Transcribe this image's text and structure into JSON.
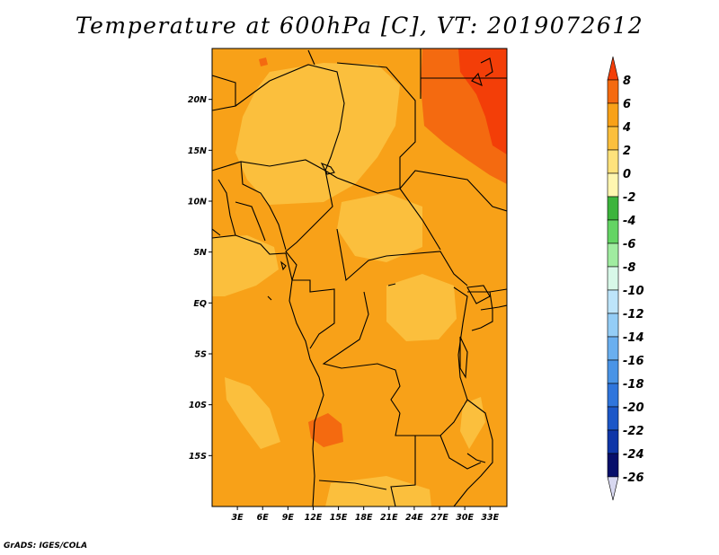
{
  "title": "Temperature at 600hPa [C], VT: 2019072612",
  "credit": "GrADS: IGES/COLA",
  "map": {
    "lon_range": [
      0,
      35
    ],
    "lat_range": [
      -20,
      25
    ],
    "lat_ticks": [
      {
        "value": 20,
        "label": "20N"
      },
      {
        "value": 15,
        "label": "15N"
      },
      {
        "value": 10,
        "label": "10N"
      },
      {
        "value": 5,
        "label": "5N"
      },
      {
        "value": 0,
        "label": "EQ"
      },
      {
        "value": -5,
        "label": "5S"
      },
      {
        "value": -10,
        "label": "10S"
      },
      {
        "value": -15,
        "label": "15S"
      }
    ],
    "lon_ticks": [
      {
        "value": 3,
        "label": "3E"
      },
      {
        "value": 6,
        "label": "6E"
      },
      {
        "value": 9,
        "label": "9E"
      },
      {
        "value": 12,
        "label": "12E"
      },
      {
        "value": 15,
        "label": "15E"
      },
      {
        "value": 18,
        "label": "18E"
      },
      {
        "value": 21,
        "label": "21E"
      },
      {
        "value": 24,
        "label": "24E"
      },
      {
        "value": 27,
        "label": "27E"
      },
      {
        "value": 30,
        "label": "30E"
      },
      {
        "value": 33,
        "label": "33E"
      }
    ],
    "colors": {
      "base_2_to_4": "#f8a118",
      "band_0_to_2": "#fbbf3d",
      "band_4_to_6": "#f46a10",
      "band_6_to_8": "#f33e08",
      "border": "#000000"
    }
  },
  "colorbar": {
    "labels": [
      "8",
      "6",
      "4",
      "2",
      "0",
      "-2",
      "-4",
      "-6",
      "-8",
      "-10",
      "-12",
      "-14",
      "-16",
      "-18",
      "-20",
      "-22",
      "-24",
      "-26"
    ],
    "colors": [
      "#f33e08",
      "#f46a10",
      "#f8a118",
      "#fbbf3d",
      "#fee27c",
      "#fff6b0",
      "#3cb43c",
      "#64d464",
      "#a0eca0",
      "#d8f8e8",
      "#bde4fa",
      "#94cdf6",
      "#6aafef",
      "#4a94e6",
      "#2f75dc",
      "#1c57c8",
      "#0f36a8",
      "#070f6a",
      "#d8d8f0"
    ]
  }
}
